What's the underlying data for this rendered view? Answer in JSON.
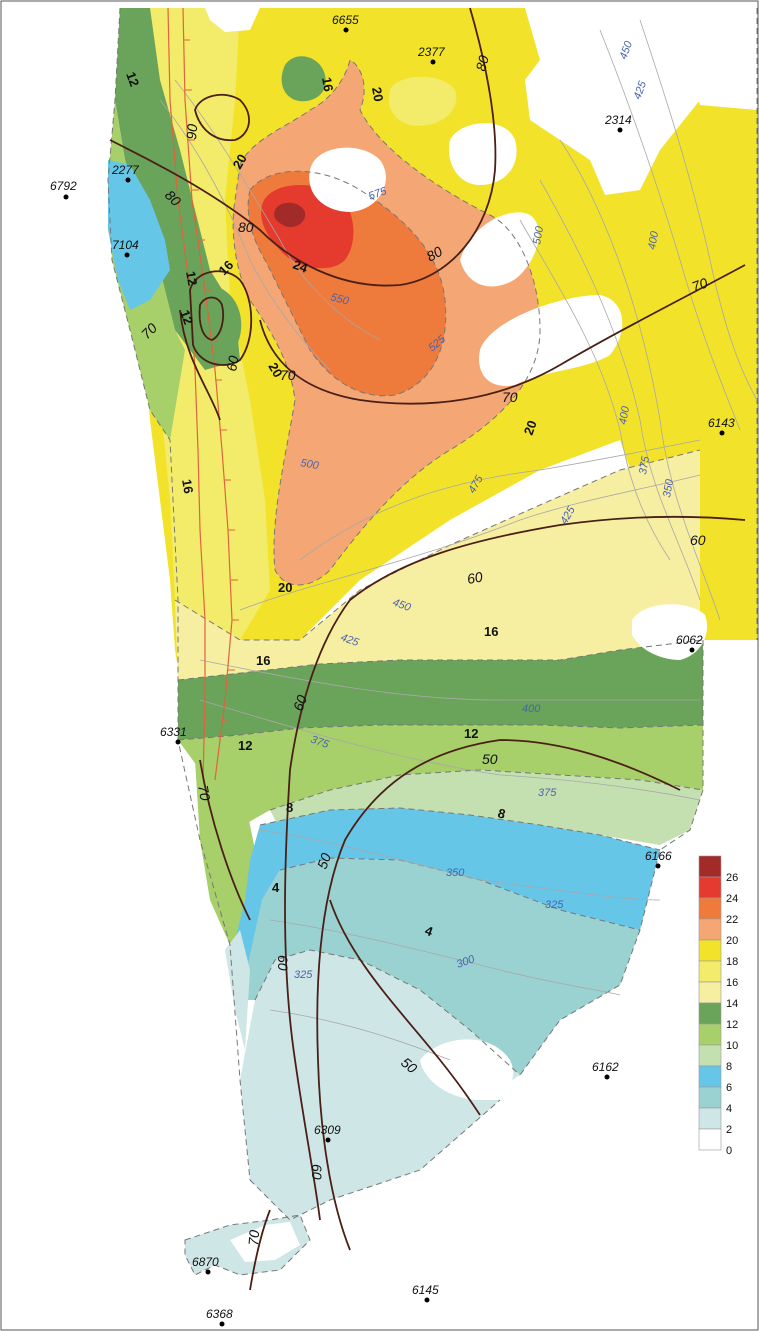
{
  "colors": {
    "c0_2": "#ffffff",
    "c2_4": "#cfe6e6",
    "c4_6": "#99d2d0",
    "c6_8": "#66c6e8",
    "c8_10": "#c5e0b0",
    "c10_12": "#a7cf6a",
    "c12_14": "#6aa35a",
    "c14_16": "#f6eea0",
    "c16_18": "#f3eb6a",
    "c18_20": "#f2e32a",
    "c20_22": "#f4a774",
    "c22_24": "#ee7a3c",
    "c24_26": "#e53a2e",
    "c26_plus": "#a22a28",
    "fault": "#e0643c",
    "brown_contour": "#4a1f16",
    "blue_contour": "#8a8ac0"
  },
  "legend": {
    "ticks": [
      "26",
      "24",
      "22",
      "20",
      "18",
      "16",
      "14",
      "12",
      "10",
      "8",
      "6",
      "4",
      "2",
      "0"
    ]
  },
  "wells": [
    {
      "id": "6655"
    },
    {
      "id": "2377"
    },
    {
      "id": "2314"
    },
    {
      "id": "6792"
    },
    {
      "id": "2277"
    },
    {
      "id": "7104"
    },
    {
      "id": "6143"
    },
    {
      "id": "6062"
    },
    {
      "id": "6331"
    },
    {
      "id": "6166"
    },
    {
      "id": "6162"
    },
    {
      "id": "6309"
    },
    {
      "id": "6870"
    },
    {
      "id": "6145"
    },
    {
      "id": "6368"
    }
  ],
  "contour_labels_black": [
    "12",
    "16",
    "20",
    "20",
    "24",
    "12",
    "16",
    "12",
    "20",
    "20",
    "16",
    "20",
    "16",
    "16",
    "12",
    "12",
    "8",
    "8",
    "4",
    "4"
  ],
  "contour_labels_brown": [
    "80",
    "90",
    "80",
    "80",
    "80",
    "70",
    "60",
    "70",
    "70",
    "70",
    "60",
    "60",
    "60",
    "50",
    "50",
    "50",
    "60",
    "60",
    "70",
    "70"
  ],
  "contour_labels_blue": [
    "450",
    "425",
    "575",
    "500",
    "400",
    "550",
    "525",
    "500",
    "475",
    "400",
    "375",
    "350",
    "425",
    "450",
    "425",
    "400",
    "375",
    "375",
    "350",
    "325",
    "325",
    "300"
  ]
}
